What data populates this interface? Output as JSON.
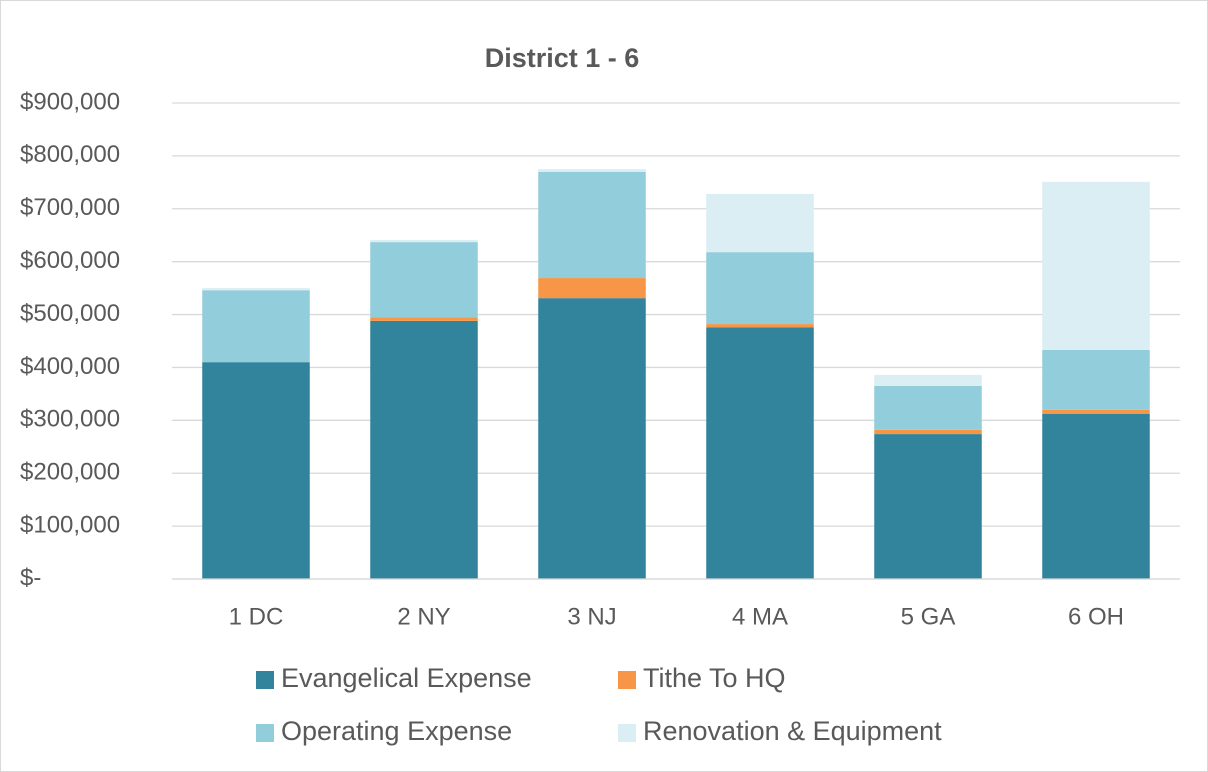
{
  "chart_data": {
    "type": "stacked_bar",
    "title": "District 1 - 6",
    "categories": [
      "1 DC",
      "2 NY",
      "3 NJ",
      "4 MA",
      "5 GA",
      "6 OH"
    ],
    "series": [
      {
        "name": "Evangelical Expense",
        "color": "#31849b",
        "values": [
          410000,
          488000,
          531000,
          476000,
          274000,
          312000
        ]
      },
      {
        "name": "Tithe To HQ",
        "color": "#f79646",
        "values": [
          0,
          7000,
          38000,
          6000,
          8000,
          8000
        ]
      },
      {
        "name": "Operating Expense",
        "color": "#92cddc",
        "values": [
          136000,
          142000,
          201000,
          136000,
          83000,
          113000
        ]
      },
      {
        "name": "Renovation & Equipment",
        "color": "#daeef3",
        "values": [
          4000,
          4000,
          5000,
          110000,
          21000,
          318000
        ]
      }
    ],
    "ylim": [
      0,
      900000
    ],
    "yticks": [
      {
        "value": 0,
        "label": "$-"
      },
      {
        "value": 100000,
        "label": "$100,000"
      },
      {
        "value": 200000,
        "label": "$200,000"
      },
      {
        "value": 300000,
        "label": "$300,000"
      },
      {
        "value": 400000,
        "label": "$400,000"
      },
      {
        "value": 500000,
        "label": "$500,000"
      },
      {
        "value": 600000,
        "label": "$600,000"
      },
      {
        "value": 700000,
        "label": "$700,000"
      },
      {
        "value": 800000,
        "label": "$800,000"
      },
      {
        "value": 900000,
        "label": "$900,000"
      }
    ],
    "grid": true,
    "legend": "bottom"
  }
}
